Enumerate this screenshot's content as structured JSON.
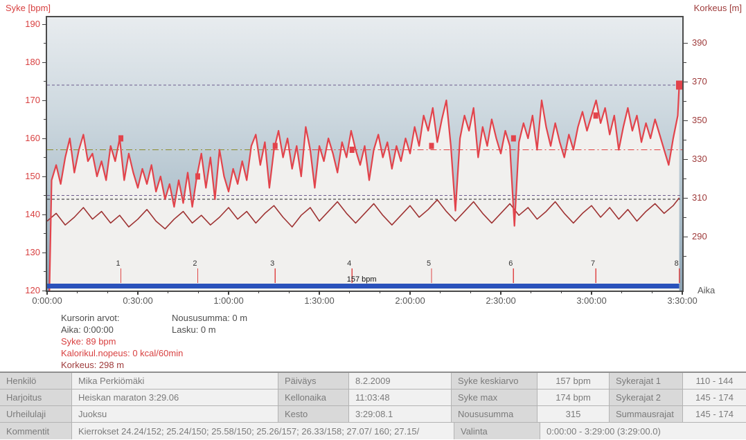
{
  "titles": {
    "left_axis": "Syke [bpm]",
    "right_axis": "Korkeus [m]",
    "time_axis": "Aika"
  },
  "colors": {
    "hr": "#e2434b",
    "altitude": "#9e3232",
    "fill_under_hr": "#f1f0ee",
    "limit_purple": "#6b5a8c",
    "limit_black": "#222222",
    "avg_olive": "#8b8b2a",
    "avg_red": "#e04040",
    "selection_bar": "#2a52bb",
    "lap_tick": "#e04848",
    "left_axis_text": "#d84040",
    "right_axis_text": "#9e3a3a",
    "time_text": "#575757"
  },
  "chart_data": {
    "type": "line",
    "title": "",
    "xlabel": "Aika",
    "x_range_min": [
      0,
      210
    ],
    "time_ticks": {
      "major_min": [
        0,
        30,
        60,
        90,
        120,
        150,
        180,
        210
      ],
      "labels": [
        "0:00:00",
        "0:30:00",
        "1:00:00",
        "1:30:00",
        "2:00:00",
        "2:30:00",
        "3:00:00",
        "3:30:00"
      ],
      "minor_step_min": 10
    },
    "left_axis": {
      "label": "Syke [bpm]",
      "unit": "bpm",
      "min": 120,
      "max": 190,
      "major_labels": [
        190,
        180,
        170,
        160,
        150,
        140,
        130,
        120
      ],
      "minor": [
        185,
        175,
        165,
        155,
        145,
        135,
        125
      ]
    },
    "right_axis": {
      "label": "Korkeus [m]",
      "unit": "m",
      "major_labels": [
        390,
        370,
        350,
        330,
        310,
        290
      ],
      "minor": [
        380,
        360,
        340,
        320,
        300,
        280
      ]
    },
    "series": [
      {
        "name": "Syke",
        "unit": "bpm",
        "interval_min": 1.5,
        "end_min": 209,
        "values": [
          89,
          149,
          153,
          148,
          155,
          160,
          151,
          157,
          161,
          154,
          156,
          150,
          154,
          149,
          158,
          154,
          160,
          149,
          156,
          151,
          147,
          152,
          148,
          153,
          146,
          150,
          144,
          148,
          142,
          149,
          143,
          151,
          142,
          150,
          156,
          147,
          155,
          144,
          157,
          150,
          146,
          152,
          148,
          154,
          149,
          158,
          161,
          153,
          159,
          147,
          157,
          162,
          155,
          160,
          152,
          158,
          150,
          163,
          157,
          147,
          158,
          154,
          160,
          156,
          151,
          159,
          155,
          162,
          157,
          153,
          158,
          149,
          157,
          161,
          155,
          159,
          152,
          158,
          154,
          160,
          156,
          163,
          158,
          166,
          162,
          168,
          159,
          165,
          170,
          158,
          141,
          160,
          166,
          162,
          168,
          155,
          163,
          158,
          165,
          160,
          156,
          162,
          158,
          137,
          159,
          164,
          160,
          166,
          157,
          170,
          163,
          158,
          164,
          159,
          155,
          161,
          157,
          163,
          167,
          162,
          166,
          170,
          164,
          168,
          161,
          166,
          157,
          163,
          168,
          162,
          166,
          159,
          164,
          160,
          165,
          161,
          157,
          153,
          160,
          166,
          174
        ]
      },
      {
        "name": "Korkeus",
        "unit": "m",
        "interval_min": 3,
        "end_min": 209,
        "values": [
          298,
          302,
          296,
          300,
          305,
          299,
          303,
          297,
          301,
          295,
          299,
          304,
          298,
          294,
          299,
          303,
          297,
          301,
          296,
          300,
          305,
          299,
          303,
          297,
          302,
          306,
          300,
          295,
          301,
          305,
          298,
          303,
          308,
          302,
          297,
          302,
          307,
          301,
          296,
          301,
          306,
          300,
          304,
          309,
          303,
          298,
          303,
          308,
          302,
          297,
          302,
          307,
          301,
          305,
          299,
          303,
          308,
          302,
          297,
          302,
          306,
          300,
          305,
          299,
          304,
          298,
          303,
          307,
          302,
          306,
          310
        ]
      }
    ],
    "reference_lines": [
      {
        "bpm": 174,
        "color": "#6b5a8c",
        "dash": "4 3",
        "from_min": 0,
        "to_min": 210,
        "width": 1.2
      },
      {
        "bpm": 157,
        "color": "#8b8b2a",
        "dash": "9 4 2 4",
        "from_min": 0,
        "to_min": 74.5,
        "width": 1.4
      },
      {
        "bpm": 157,
        "color": "#e04040",
        "dash": "9 4 2 4",
        "from_min": 74.5,
        "to_min": 210,
        "width": 1.4
      },
      {
        "bpm": 145,
        "color": "#6b5a8c",
        "dash": "4 3",
        "from_min": 0,
        "to_min": 210,
        "width": 1.2
      },
      {
        "bpm": 144,
        "color": "#222222",
        "dash": "4 3",
        "from_min": 0,
        "to_min": 210,
        "width": 1.2
      }
    ],
    "laps": {
      "labels": [
        "1",
        "2",
        "3",
        "4",
        "5",
        "6",
        "7",
        "8"
      ],
      "times_min": [
        24.4,
        49.8,
        75.4,
        100.8,
        127.1,
        154.2,
        181.4,
        209
      ],
      "marker_bpm": [
        160,
        150,
        158,
        157,
        158,
        160,
        166,
        174
      ]
    },
    "lap_tooltip": {
      "text": "157 bpm",
      "time_min": 104
    },
    "selection_bar": {
      "from_min": 0,
      "to_min": 209,
      "label": "selection 0:00:00 - 3:29:00"
    }
  },
  "cursor_panel": {
    "col1": {
      "header": "Kursorin arvot:",
      "time": "Aika: 0:00:00",
      "hr": "Syke: 89 bpm",
      "calories": "Kalorikul.nopeus: 0 kcal/60min",
      "altitude": "Korkeus: 298 m"
    },
    "col2": {
      "ascent": "Noususumma: 0 m",
      "descent": "Lasku: 0 m"
    }
  },
  "summary_table": {
    "r1": {
      "l1": "Henkilö",
      "v1": "Mika Perkiömäki",
      "l2": "Päiväys",
      "v2": "8.2.2009",
      "l3": "Syke keskiarvo",
      "v3": "157 bpm",
      "l4": "Sykerajat 1",
      "v4": "110 - 144"
    },
    "r2": {
      "l1": "Harjoitus",
      "v1": "Heiskan maraton 3:29.06",
      "l2": "Kellonaika",
      "v2": "11:03:48",
      "l3": "Syke max",
      "v3": "174 bpm",
      "l4": "Sykerajat 2",
      "v4": "145 - 174"
    },
    "r3": {
      "l1": "Urheilulaji",
      "v1": "Juoksu",
      "l2": "Kesto",
      "v2": "3:29:08.1",
      "l3": "Noususumma",
      "v3": "315",
      "l4": "Summausrajat",
      "v4": "145 - 174"
    },
    "r4": {
      "l1": "Kommentit",
      "v1": "Kierrokset 24.24/152; 25.24/150; 25.58/150; 25.26/157; 26.33/158; 27.07/ 160; 27.15/",
      "l2": "Valinta",
      "v2": "0:00:00 - 3:29:00 (3:29:00.0)"
    }
  }
}
